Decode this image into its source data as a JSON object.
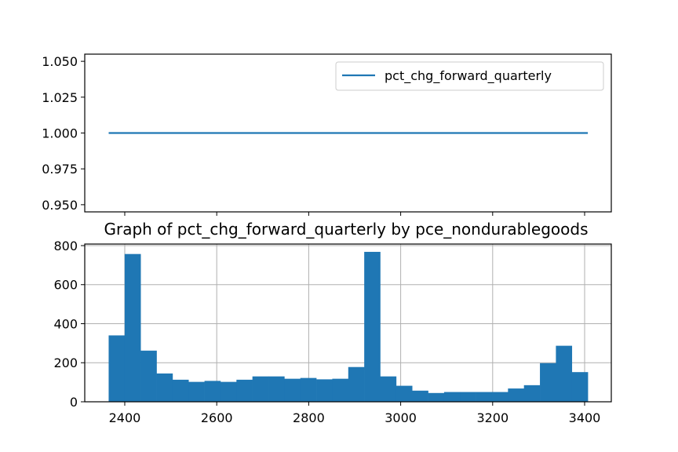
{
  "chart_data": [
    {
      "type": "line",
      "title": "",
      "xlabel": "",
      "ylabel": "",
      "xlim": [
        2313,
        3458
      ],
      "ylim": [
        0.945,
        1.055
      ],
      "y_ticks": [
        "0.950",
        "0.975",
        "1.000",
        "1.025",
        "1.050"
      ],
      "y_tick_values": [
        0.95,
        0.975,
        1.0,
        1.025,
        1.05
      ],
      "x_tick_values": [
        2400,
        2600,
        2800,
        3000,
        3200,
        3400
      ],
      "grid": false,
      "legend_position": "top-right",
      "series": [
        {
          "name": "pct_chg_forward_quarterly",
          "color": "#1f77b4",
          "x": [
            2365,
            3407
          ],
          "y": [
            1.0,
            1.0
          ]
        }
      ]
    },
    {
      "type": "bar",
      "subtype": "histogram",
      "title": "Graph of pct_chg_forward_quarterly by pce_nondurablegoods",
      "xlabel": "",
      "ylabel": "",
      "xlim": [
        2313,
        3458
      ],
      "ylim": [
        0,
        808
      ],
      "x_ticks": [
        "2400",
        "2600",
        "2800",
        "3000",
        "3200",
        "3400"
      ],
      "x_tick_values": [
        2400,
        2600,
        2800,
        3000,
        3200,
        3400
      ],
      "y_ticks": [
        "0",
        "200",
        "400",
        "600",
        "800"
      ],
      "y_tick_values": [
        0,
        200,
        400,
        600,
        800
      ],
      "grid": true,
      "color": "#1f77b4",
      "bin_start": 2365,
      "bin_end": 3407,
      "bin_count": 30,
      "values": [
        340,
        757,
        262,
        145,
        113,
        102,
        107,
        102,
        113,
        130,
        130,
        118,
        122,
        115,
        118,
        178,
        768,
        130,
        82,
        57,
        45,
        50,
        50,
        50,
        50,
        68,
        85,
        198,
        287,
        152
      ]
    }
  ]
}
